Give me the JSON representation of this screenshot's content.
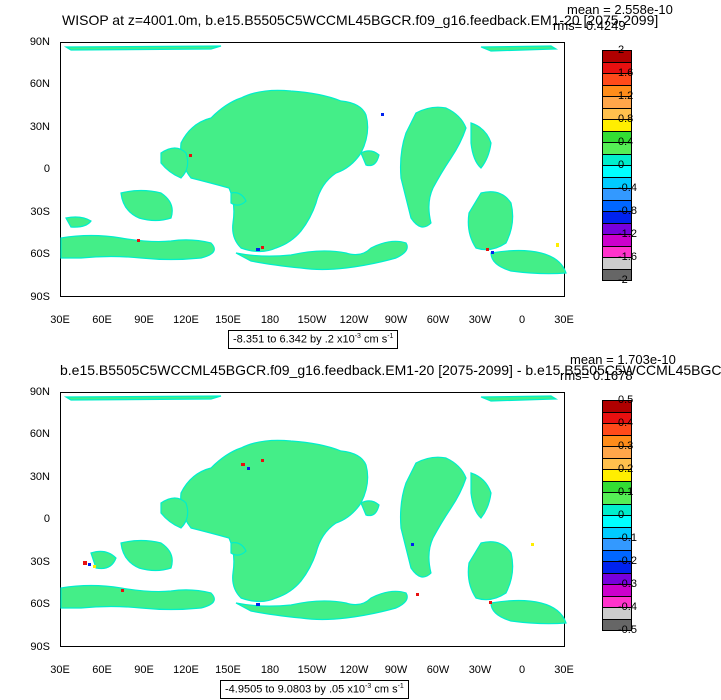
{
  "panels": [
    {
      "title": "WISOP at z=4001.0m, b.e15.B5505C5WCCML45BGCR.f09_g16.feedback.EM1-20 [2075-2099]",
      "mean": "mean = 2.558e-10",
      "rms": "rms= 0.4249",
      "range_text": "-8.351 to 6.342 by .2 x10",
      "range_exp": "-3",
      "range_units": " cm s",
      "range_units_exp": "-1",
      "colorbar_labels": [
        "2",
        "1.6",
        "1.2",
        "0.8",
        "0.4",
        "0",
        "-0.4",
        "-0.8",
        "-1.2",
        "-1.6",
        "-2"
      ],
      "colorbar_colors": [
        "#b00000",
        "#e81010",
        "#ff4a1a",
        "#ff8c1a",
        "#ffa64a",
        "#ffc04d",
        "#ffee00",
        "#33dd33",
        "#55ee55",
        "#00eecc",
        "#00ffff",
        "#00ccff",
        "#3399ff",
        "#0066ff",
        "#0022ee",
        "#7700dd",
        "#cc00cc",
        "#ff33cc",
        "#cccccc",
        "#666666"
      ]
    },
    {
      "title": "b.e15.B5505C5WCCML45BGCR.f09_g16.feedback.EM1-20 [2075-2099] - b.e15.B5505C5WCCML45BGC",
      "mean": "mean = 1.703e-10",
      "rms": "rms= 0.1678",
      "range_text": "-4.9505 to 9.0803 by .05 x10",
      "range_exp": "-3",
      "range_units": " cm s",
      "range_units_exp": "-1",
      "colorbar_labels": [
        "0.5",
        "0.4",
        "0.3",
        "0.2",
        "0.1",
        "0",
        "-0.1",
        "-0.2",
        "-0.3",
        "-0.4",
        "-0.5"
      ],
      "colorbar_colors": [
        "#b00000",
        "#e81010",
        "#ff4a1a",
        "#ff8c1a",
        "#ffa64a",
        "#ffc04d",
        "#ffee00",
        "#33dd33",
        "#55ee55",
        "#00eecc",
        "#00ffff",
        "#00ccff",
        "#3399ff",
        "#0066ff",
        "#0022ee",
        "#7700dd",
        "#cc00cc",
        "#ff33cc",
        "#cccccc",
        "#666666"
      ]
    }
  ],
  "lat_labels": [
    "90N",
    "60N",
    "30N",
    "0",
    "30S",
    "60S",
    "90S"
  ],
  "lon_labels": [
    "30E",
    "60E",
    "90E",
    "120E",
    "150E",
    "180",
    "150W",
    "120W",
    "90W",
    "60W",
    "30W",
    "0",
    "30E"
  ],
  "map_colors": {
    "land": "#44ee88",
    "cyan": "#00eecc",
    "speckle_red": "#e81010",
    "speckle_blue": "#0022ee",
    "speckle_yellow": "#ffee00"
  }
}
